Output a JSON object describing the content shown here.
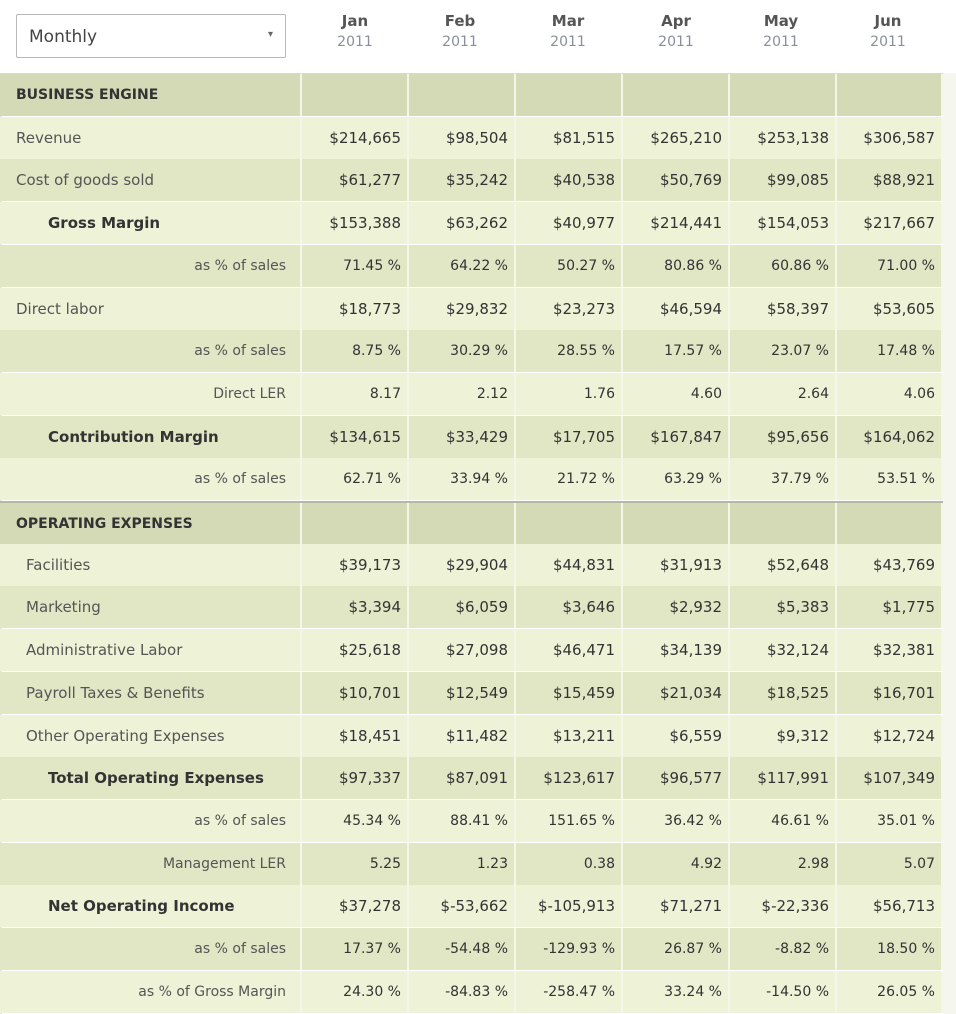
{
  "period_select": {
    "value": "Monthly",
    "arrow_icon": "chevron-down-icon"
  },
  "months": [
    {
      "month": "Jan",
      "year": "2011"
    },
    {
      "month": "Feb",
      "year": "2011"
    },
    {
      "month": "Mar",
      "year": "2011"
    },
    {
      "month": "Apr",
      "year": "2011"
    },
    {
      "month": "May",
      "year": "2011"
    },
    {
      "month": "Jun",
      "year": "2011"
    }
  ],
  "colors": {
    "row_light": "#eef2d7",
    "row_dark": "#e1e7c5",
    "section_header": "#d4dab5",
    "header_bg": "#ffffff"
  },
  "rows": [
    {
      "label": "BUSINESS ENGINE",
      "kind": "section",
      "values": [
        "",
        "",
        "",
        "",
        "",
        ""
      ]
    },
    {
      "label": "Revenue",
      "kind": "normal",
      "values": [
        "$214,665",
        "$98,504",
        "$81,515",
        "$265,210",
        "$253,138",
        "$306,587"
      ]
    },
    {
      "label": "Cost of goods sold",
      "kind": "normal",
      "values": [
        "$61,277",
        "$35,242",
        "$40,538",
        "$50,769",
        "$99,085",
        "$88,921"
      ]
    },
    {
      "label": "Gross Margin",
      "kind": "bold",
      "values": [
        "$153,388",
        "$63,262",
        "$40,977",
        "$214,441",
        "$154,053",
        "$217,667"
      ]
    },
    {
      "label": "as % of sales",
      "kind": "pct",
      "values": [
        "71.45 %",
        "64.22 %",
        "50.27 %",
        "80.86 %",
        "60.86 %",
        "71.00 %"
      ]
    },
    {
      "label": "Direct labor",
      "kind": "normal",
      "values": [
        "$18,773",
        "$29,832",
        "$23,273",
        "$46,594",
        "$58,397",
        "$53,605"
      ]
    },
    {
      "label": "as % of sales",
      "kind": "pct",
      "values": [
        "8.75 %",
        "30.29 %",
        "28.55 %",
        "17.57 %",
        "23.07 %",
        "17.48 %"
      ]
    },
    {
      "label": "Direct LER",
      "kind": "pct",
      "values": [
        "8.17",
        "2.12",
        "1.76",
        "4.60",
        "2.64",
        "4.06"
      ]
    },
    {
      "label": "Contribution Margin",
      "kind": "bold",
      "values": [
        "$134,615",
        "$33,429",
        "$17,705",
        "$167,847",
        "$95,656",
        "$164,062"
      ]
    },
    {
      "label": "as % of sales",
      "kind": "pct",
      "values": [
        "62.71 %",
        "33.94 %",
        "21.72 %",
        "63.29 %",
        "37.79 %",
        "53.51 %"
      ]
    },
    {
      "label": "OPERATING EXPENSES",
      "kind": "section",
      "values": [
        "",
        "",
        "",
        "",
        "",
        ""
      ]
    },
    {
      "label": "Facilities",
      "kind": "indent",
      "values": [
        "$39,173",
        "$29,904",
        "$44,831",
        "$31,913",
        "$52,648",
        "$43,769"
      ]
    },
    {
      "label": "Marketing",
      "kind": "indent",
      "values": [
        "$3,394",
        "$6,059",
        "$3,646",
        "$2,932",
        "$5,383",
        "$1,775"
      ]
    },
    {
      "label": "Administrative Labor",
      "kind": "indent",
      "values": [
        "$25,618",
        "$27,098",
        "$46,471",
        "$34,139",
        "$32,124",
        "$32,381"
      ]
    },
    {
      "label": "Payroll Taxes & Benefits",
      "kind": "indent",
      "values": [
        "$10,701",
        "$12,549",
        "$15,459",
        "$21,034",
        "$18,525",
        "$16,701"
      ]
    },
    {
      "label": "Other Operating Expenses",
      "kind": "indent",
      "values": [
        "$18,451",
        "$11,482",
        "$13,211",
        "$6,559",
        "$9,312",
        "$12,724"
      ]
    },
    {
      "label": "Total Operating Expenses",
      "kind": "bold",
      "values": [
        "$97,337",
        "$87,091",
        "$123,617",
        "$96,577",
        "$117,991",
        "$107,349"
      ]
    },
    {
      "label": "as % of sales",
      "kind": "pct",
      "values": [
        "45.34 %",
        "88.41 %",
        "151.65 %",
        "36.42 %",
        "46.61 %",
        "35.01 %"
      ]
    },
    {
      "label": "Management LER",
      "kind": "pct",
      "values": [
        "5.25",
        "1.23",
        "0.38",
        "4.92",
        "2.98",
        "5.07"
      ]
    },
    {
      "label": "Net Operating Income",
      "kind": "bold",
      "values": [
        "$37,278",
        "$-53,662",
        "$-105,913",
        "$71,271",
        "$-22,336",
        "$56,713"
      ]
    },
    {
      "label": "as % of sales",
      "kind": "pct",
      "values": [
        "17.37 %",
        "-54.48 %",
        "-129.93 %",
        "26.87 %",
        "-8.82 %",
        "18.50 %"
      ]
    },
    {
      "label": "as % of Gross Margin",
      "kind": "pct",
      "values": [
        "24.30 %",
        "-84.83 %",
        "-258.47 %",
        "33.24 %",
        "-14.50 %",
        "26.05 %"
      ]
    }
  ]
}
